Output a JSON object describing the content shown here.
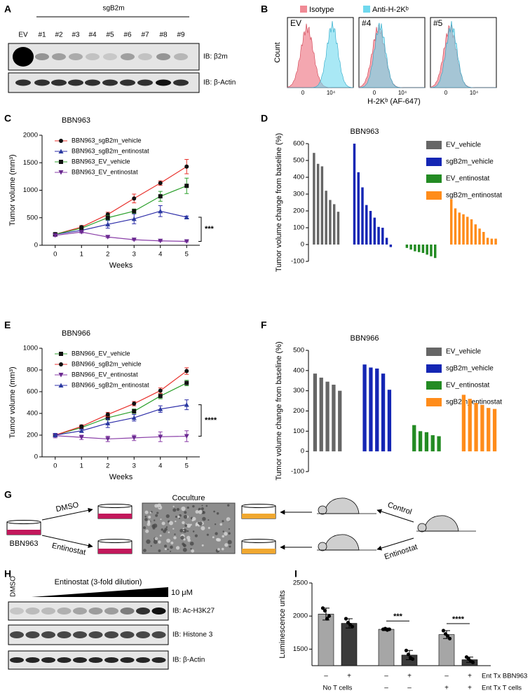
{
  "panel_letters": [
    "A",
    "B",
    "C",
    "D",
    "E",
    "F",
    "G",
    "H",
    "I"
  ],
  "blot_a": {
    "group_label": "sgB2m",
    "lanes": [
      "EV",
      "#1",
      "#2",
      "#3",
      "#4",
      "#5",
      "#6",
      "#7",
      "#8",
      "#9"
    ],
    "blots": [
      "IB: β2m",
      "IB: β-Actin"
    ]
  },
  "flow_b": {
    "legend": [
      "Isotype",
      "Anti-H-2Kᵇ"
    ],
    "panels": [
      "EV",
      "#4",
      "#5"
    ],
    "ylabel": "Count",
    "xlabel": "H-2Kᵇ (AF-647)",
    "ticks": [
      "0",
      "10⁴"
    ]
  },
  "chart_data": [
    {
      "type": "line",
      "title": "BBN963",
      "xlabel": "Weeks",
      "ylabel": "Tumor volume (mm³)",
      "x": [
        0,
        1,
        2,
        3,
        4,
        5
      ],
      "xlim": [
        -0.5,
        5.5
      ],
      "xticks": [
        0,
        1,
        2,
        3,
        4,
        5
      ],
      "ylim": [
        0,
        2000
      ],
      "yticks": [
        0,
        500,
        1000,
        1500,
        2000
      ],
      "series": [
        {
          "name": "BBN963_sgB2m_vehicle",
          "color": "#e8322d",
          "marker": "circle",
          "marker_color": "#111111",
          "values": [
            200,
            330,
            560,
            850,
            1130,
            1430
          ],
          "errors": [
            20,
            30,
            40,
            80,
            40,
            130
          ]
        },
        {
          "name": "BBN963_sgB2m_entinostat",
          "color": "#2c2ca8",
          "marker": "triangle",
          "marker_color": "#2a3aa0",
          "values": [
            200,
            270,
            380,
            480,
            620,
            510
          ],
          "errors": [
            20,
            30,
            70,
            90,
            100,
            20
          ]
        },
        {
          "name": "BBN963_EV_vehicle",
          "color": "#2ca02c",
          "marker": "square",
          "marker_color": "#111111",
          "values": [
            200,
            310,
            500,
            620,
            890,
            1080
          ],
          "errors": [
            20,
            30,
            40,
            40,
            90,
            140
          ]
        },
        {
          "name": "BBN963_EV_entinostat",
          "color": "#8a3fa8",
          "marker": "triangle-down",
          "marker_color": "#6a2a90",
          "values": [
            180,
            240,
            150,
            100,
            80,
            70
          ],
          "errors": [
            20,
            20,
            15,
            10,
            10,
            10
          ]
        }
      ],
      "annotations": [
        "***"
      ]
    },
    {
      "type": "bar",
      "title": "BBN963",
      "ylabel": "Tumor volume change from baseline (%)",
      "ylim": [
        -100,
        600
      ],
      "yticks": [
        -100,
        0,
        100,
        200,
        300,
        400,
        500,
        600
      ],
      "series": [
        {
          "name": "EV_vehicle",
          "color": "#666666",
          "values": [
            545,
            480,
            465,
            320,
            265,
            240,
            195
          ]
        },
        {
          "name": "sgB2m_vehicle",
          "color": "#1426b4",
          "values": [
            600,
            430,
            340,
            235,
            200,
            160,
            105,
            100,
            40,
            -15
          ]
        },
        {
          "name": "EV_entinostat",
          "color": "#238b23",
          "values": [
            -20,
            -30,
            -40,
            -45,
            -50,
            -60,
            -70,
            -80
          ]
        },
        {
          "name": "sgB2m_entinostat",
          "color": "#ff8c1a",
          "values": [
            270,
            215,
            190,
            180,
            165,
            150,
            120,
            95,
            75,
            40,
            35,
            35
          ]
        }
      ]
    },
    {
      "type": "line",
      "title": "BBN966",
      "xlabel": "Weeks",
      "ylabel": "Tumor volume (mm³)",
      "x": [
        0,
        1,
        2,
        3,
        4,
        5
      ],
      "xlim": [
        -0.5,
        5.5
      ],
      "xticks": [
        0,
        1,
        2,
        3,
        4,
        5
      ],
      "ylim": [
        0,
        1000
      ],
      "yticks": [
        0,
        200,
        400,
        600,
        800,
        1000
      ],
      "series": [
        {
          "name": "BBN966_EV_vehicle",
          "color": "#2ca02c",
          "marker": "square",
          "marker_color": "#111111",
          "values": [
            200,
            270,
            360,
            420,
            560,
            680
          ],
          "errors": [
            15,
            15,
            20,
            20,
            25,
            25
          ]
        },
        {
          "name": "BBN966_sgB2m_vehicle",
          "color": "#e8322d",
          "marker": "circle",
          "marker_color": "#111111",
          "values": [
            200,
            280,
            390,
            490,
            610,
            790
          ],
          "errors": [
            15,
            15,
            20,
            20,
            25,
            30
          ]
        },
        {
          "name": "BBN966_EV_entinostat",
          "color": "#8a3fa8",
          "marker": "triangle-down",
          "marker_color": "#6a2a90",
          "values": [
            195,
            180,
            165,
            175,
            185,
            190
          ],
          "errors": [
            20,
            20,
            25,
            25,
            45,
            50
          ]
        },
        {
          "name": "BBN966_sgB2m_entinostat",
          "color": "#2c2ca8",
          "marker": "triangle",
          "marker_color": "#2a3aa0",
          "values": [
            200,
            240,
            310,
            360,
            440,
            480
          ],
          "errors": [
            15,
            15,
            40,
            30,
            30,
            45
          ]
        }
      ],
      "annotations": [
        "****"
      ]
    },
    {
      "type": "bar",
      "title": "BBN966",
      "ylabel": "Tumor volume change from baseline (%)",
      "ylim": [
        -100,
        500
      ],
      "yticks": [
        -100,
        0,
        100,
        200,
        300,
        400,
        500
      ],
      "series": [
        {
          "name": "EV_vehicle",
          "color": "#666666",
          "values": [
            385,
            365,
            345,
            330,
            300
          ]
        },
        {
          "name": "sgB2m_vehicle",
          "color": "#1426b4",
          "values": [
            430,
            415,
            410,
            385,
            305
          ]
        },
        {
          "name": "EV_entinostat",
          "color": "#238b23",
          "values": [
            130,
            100,
            95,
            80,
            75
          ]
        },
        {
          "name": "sgB2m_entinostat",
          "color": "#ff8c1a",
          "values": [
            280,
            260,
            240,
            230,
            215,
            210
          ]
        }
      ]
    },
    {
      "type": "bar",
      "ylabel": "Luminescence units",
      "ylim": [
        1250,
        2500
      ],
      "yticks": [
        1500,
        2000,
        2500
      ],
      "values": [
        2030,
        1890,
        1800,
        1410,
        1720,
        1340
      ],
      "errors": [
        90,
        70,
        20,
        70,
        60,
        40
      ],
      "points": [
        [
          2120,
          2080,
          1960,
          2000
        ],
        [
          1960,
          1900,
          1870,
          1840
        ],
        [
          1800,
          1810,
          1790,
          1800
        ],
        [
          1480,
          1420,
          1370,
          1350
        ],
        [
          1780,
          1730,
          1700,
          1660
        ],
        [
          1380,
          1350,
          1320,
          1300
        ]
      ],
      "colors": [
        "#a6a6a6",
        "#3a3a3a",
        "#a6a6a6",
        "#3a3a3a",
        "#a6a6a6",
        "#3a3a3a"
      ],
      "conditions": [
        {
          "label": "Ent Tx BBN963",
          "signs": [
            "–",
            "+",
            "–",
            "+",
            "–",
            "+"
          ]
        },
        {
          "label": "Ent Tx T cells",
          "group_label": "No T cells",
          "signs": [
            null,
            null,
            "–",
            "–",
            "+",
            "+"
          ]
        }
      ],
      "annotations": [
        "***",
        "****"
      ]
    }
  ],
  "diagram_g": {
    "coculture": "Coculture",
    "cell_line": "BBN963",
    "arrows": [
      "DMSO",
      "Entinostat",
      "Control",
      "Entinostat"
    ]
  },
  "blot_h": {
    "control": "DMSO",
    "gradient": "Entinostat (3-fold dilution)",
    "max": "10 μM",
    "blots": [
      "IB: Ac-H3K27",
      "IB: Histone 3",
      "IB: β-Actin"
    ]
  }
}
